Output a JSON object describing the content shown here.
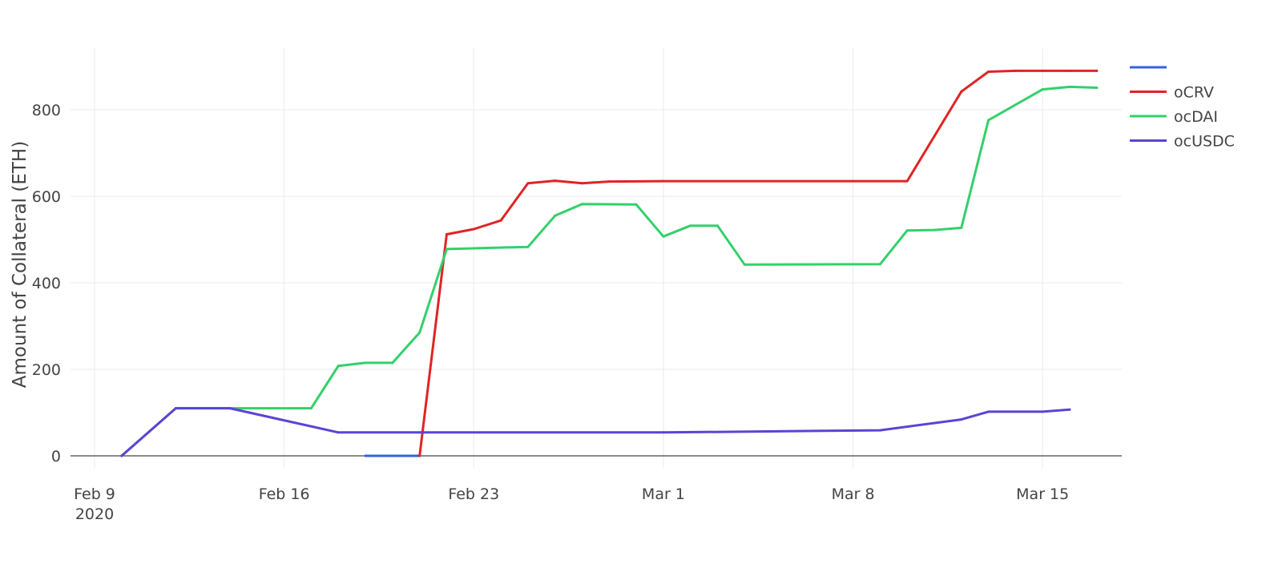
{
  "chart_data": {
    "type": "line",
    "xlabel": "",
    "ylabel": "Amount of Collateral (ETH)",
    "x_ticks": [
      {
        "date": "2020-02-09",
        "label": "Feb 9",
        "sublabel": "2020"
      },
      {
        "date": "2020-02-16",
        "label": "Feb 16",
        "sublabel": ""
      },
      {
        "date": "2020-02-23",
        "label": "Feb 23",
        "sublabel": ""
      },
      {
        "date": "2020-03-01",
        "label": "Mar 1",
        "sublabel": ""
      },
      {
        "date": "2020-03-08",
        "label": "Mar 8",
        "sublabel": ""
      },
      {
        "date": "2020-03-15",
        "label": "Mar 15",
        "sublabel": ""
      }
    ],
    "y_ticks": [
      "0",
      "200",
      "400",
      "600",
      "800"
    ],
    "xlim": [
      "2020-02-09",
      "2020-03-18"
    ],
    "ylim": [
      -30,
      950
    ],
    "grid": true,
    "legend_position": "top-right",
    "series": [
      {
        "name": "",
        "color": "#3461e0",
        "x": [
          "2020-02-19",
          "2020-02-21"
        ],
        "y": [
          0,
          0
        ]
      },
      {
        "name": "oCRV",
        "color": "#e02424",
        "x": [
          "2020-02-21",
          "2020-02-22",
          "2020-02-23",
          "2020-02-24",
          "2020-02-25",
          "2020-02-26",
          "2020-02-27",
          "2020-02-28",
          "2020-03-01",
          "2020-03-10",
          "2020-03-12",
          "2020-03-13",
          "2020-03-14",
          "2020-03-15",
          "2020-03-16",
          "2020-03-17"
        ],
        "y": [
          0,
          512,
          524,
          544,
          630,
          636,
          630,
          634,
          635,
          635,
          842,
          888,
          890,
          890,
          890,
          890
        ]
      },
      {
        "name": "ocDAI",
        "color": "#33d06b",
        "x": [
          "2020-02-10",
          "2020-02-12",
          "2020-02-14",
          "2020-02-17",
          "2020-02-18",
          "2020-02-19",
          "2020-02-20",
          "2020-02-21",
          "2020-02-22",
          "2020-02-25",
          "2020-02-26",
          "2020-02-27",
          "2020-02-29",
          "2020-03-01",
          "2020-03-02",
          "2020-03-03",
          "2020-03-04",
          "2020-03-09",
          "2020-03-10",
          "2020-03-11",
          "2020-03-12",
          "2020-03-13",
          "2020-03-15",
          "2020-03-16",
          "2020-03-17"
        ],
        "y": [
          0,
          110,
          110,
          110,
          208,
          215,
          215,
          285,
          478,
          483,
          555,
          582,
          581,
          507,
          532,
          532,
          442,
          443,
          521,
          522,
          527,
          776,
          847,
          853,
          851
        ]
      },
      {
        "name": "ocUSDC",
        "color": "#5b44d4",
        "x": [
          "2020-02-10",
          "2020-02-12",
          "2020-02-14",
          "2020-02-18",
          "2020-02-21",
          "2020-03-01",
          "2020-03-09",
          "2020-03-12",
          "2020-03-13",
          "2020-03-15",
          "2020-03-16"
        ],
        "y": [
          0,
          110,
          110,
          54,
          54,
          54,
          59,
          84,
          102,
          102,
          107
        ]
      }
    ]
  }
}
